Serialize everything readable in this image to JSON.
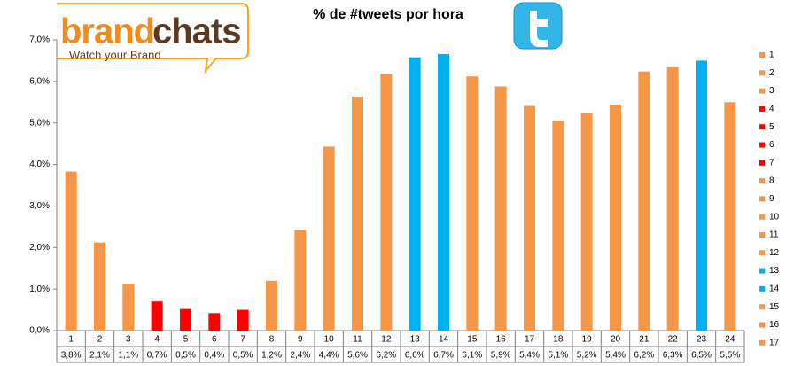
{
  "brand": {
    "name_part1": "brand",
    "name_part2": "chats",
    "tagline": "Watch your Brand"
  },
  "chart_data": {
    "type": "bar",
    "title": "% de #tweets por hora",
    "categories": [
      "1",
      "2",
      "3",
      "4",
      "5",
      "6",
      "7",
      "8",
      "9",
      "10",
      "11",
      "12",
      "13",
      "14",
      "15",
      "16",
      "17",
      "18",
      "19",
      "20",
      "21",
      "22",
      "23",
      "24"
    ],
    "values": [
      3.83,
      2.12,
      1.13,
      0.7,
      0.52,
      0.42,
      0.5,
      1.2,
      2.42,
      4.43,
      5.63,
      6.18,
      6.58,
      6.66,
      6.12,
      5.88,
      5.41,
      5.06,
      5.23,
      5.44,
      6.24,
      6.34,
      6.5,
      5.5
    ],
    "value_labels": [
      "3,8%",
      "2,1%",
      "1,1%",
      "0,7%",
      "0,5%",
      "0,4%",
      "0,5%",
      "1,2%",
      "2,4%",
      "4,4%",
      "5,6%",
      "6,2%",
      "6,6%",
      "6,7%",
      "6,1%",
      "5,9%",
      "5,4%",
      "5,1%",
      "5,2%",
      "5,4%",
      "6,2%",
      "6,3%",
      "6,5%",
      "5,5%"
    ],
    "colors": [
      "#f79646",
      "#f79646",
      "#f79646",
      "#ff0000",
      "#ff0000",
      "#ff0000",
      "#ff0000",
      "#f79646",
      "#f79646",
      "#f79646",
      "#f79646",
      "#f79646",
      "#00b0f0",
      "#00b0f0",
      "#f79646",
      "#f79646",
      "#f79646",
      "#f79646",
      "#f79646",
      "#f79646",
      "#f79646",
      "#f79646",
      "#00b0f0",
      "#f79646"
    ],
    "legend_count": 17,
    "ylim": [
      0,
      7
    ],
    "yticks": [
      {
        "value": 0,
        "label": "0,0%"
      },
      {
        "value": 1,
        "label": "1,0%"
      },
      {
        "value": 2,
        "label": "2,0%"
      },
      {
        "value": 3,
        "label": "3,0%"
      },
      {
        "value": 4,
        "label": "4,0%"
      },
      {
        "value": 5,
        "label": "5,0%"
      },
      {
        "value": 6,
        "label": "6,0%"
      },
      {
        "value": 7,
        "label": "7,0%"
      }
    ],
    "grid": false
  }
}
